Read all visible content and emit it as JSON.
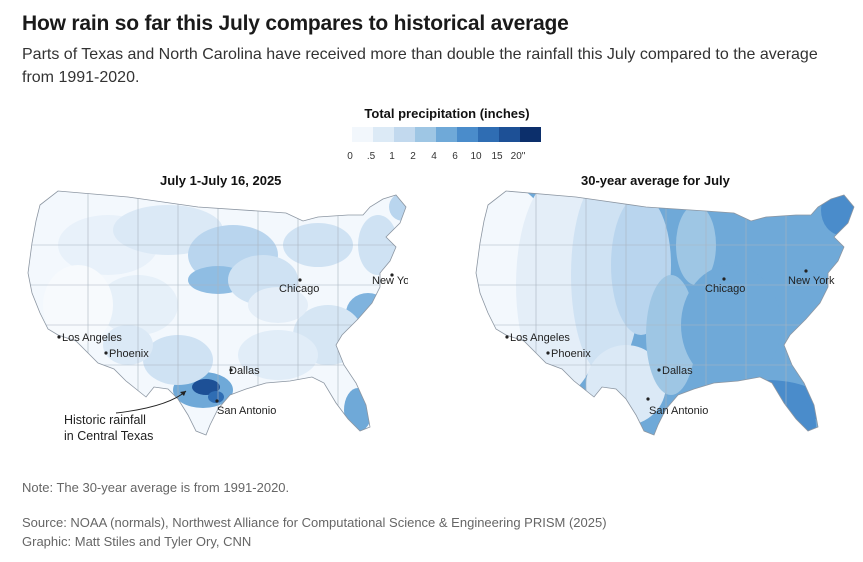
{
  "header": {
    "title": "How rain so far this July compares to historical average",
    "subtitle": "Parts of Texas and North Carolina have received more than double the rainfall this July compared to the average from 1991-2020."
  },
  "legend": {
    "title": "Total precipitation (inches)",
    "ticks": [
      "0",
      ".5",
      "1",
      "2",
      "4",
      "6",
      "10",
      "15",
      "20\""
    ],
    "colors": [
      "#f2f7fc",
      "#dceaf6",
      "#c2d9ee",
      "#9ec6e4",
      "#6fa9d8",
      "#4a8ccb",
      "#2f6db3",
      "#1d5096",
      "#0c2f6b"
    ]
  },
  "maps": [
    {
      "title": "July 1-July 16, 2025",
      "cities": {
        "los_angeles": "Los Angeles",
        "phoenix": "Phoenix",
        "dallas": "Dallas",
        "san_antonio": "San Antonio",
        "chicago": "Chicago",
        "new_york": "New York"
      },
      "annotation": [
        "Historic rainfall",
        "in Central Texas"
      ]
    },
    {
      "title": "30-year average for July",
      "cities": {
        "los_angeles": "Los Angeles",
        "phoenix": "Phoenix",
        "dallas": "Dallas",
        "san_antonio": "San Antonio",
        "chicago": "Chicago",
        "new_york": "New York"
      }
    }
  ],
  "footer": {
    "note": "Note: The 30-year average is from 1991-2020.",
    "source": "Source: NOAA (normals), Northwest Alliance for Computational Science & Engineering PRISM (2025)",
    "credit": "Graphic: Matt Stiles and Tyler Ory, CNN"
  }
}
